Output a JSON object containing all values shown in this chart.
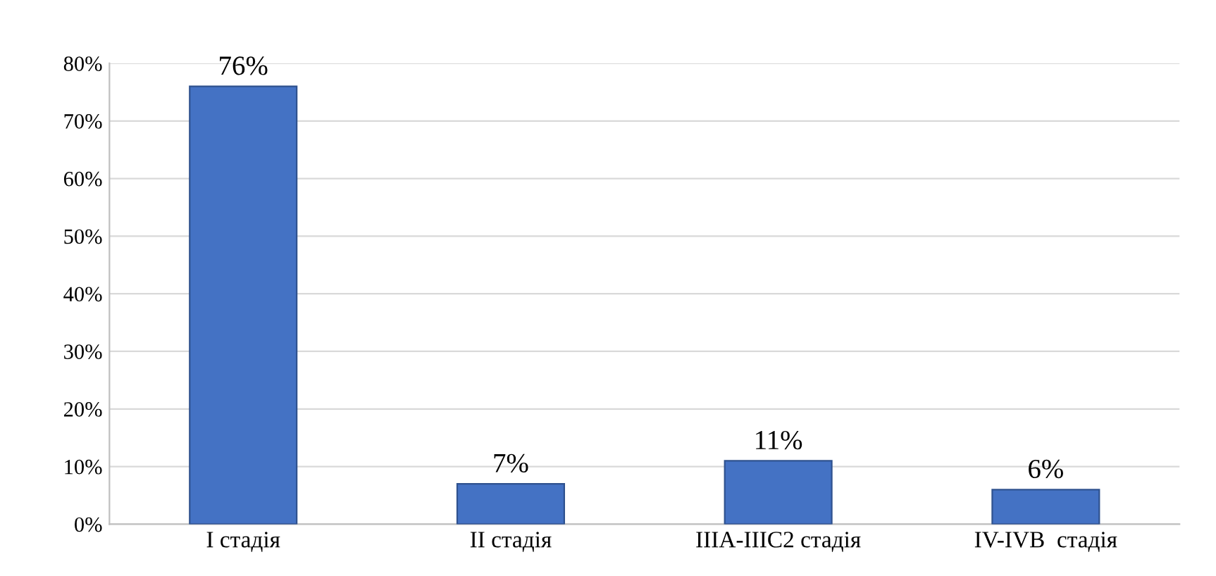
{
  "chart_data": {
    "type": "bar",
    "categories": [
      "I стадія",
      "II стадія",
      "IIIA-IIIC2 стадія",
      "IV-IVB  стадія"
    ],
    "values": [
      76,
      7,
      11,
      6
    ],
    "value_labels": [
      "76%",
      "7%",
      "11%",
      "6%"
    ],
    "color": "#4472c4",
    "ylim": [
      0,
      80
    ],
    "yticks": [
      {
        "value": 0,
        "label": "0%"
      },
      {
        "value": 10,
        "label": "10%"
      },
      {
        "value": 20,
        "label": "20%"
      },
      {
        "value": 30,
        "label": "30%"
      },
      {
        "value": 40,
        "label": "40%"
      },
      {
        "value": 50,
        "label": "50%"
      },
      {
        "value": 60,
        "label": "60%"
      },
      {
        "value": 70,
        "label": "70%"
      },
      {
        "value": 80,
        "label": "80%"
      }
    ],
    "grid": "y"
  }
}
